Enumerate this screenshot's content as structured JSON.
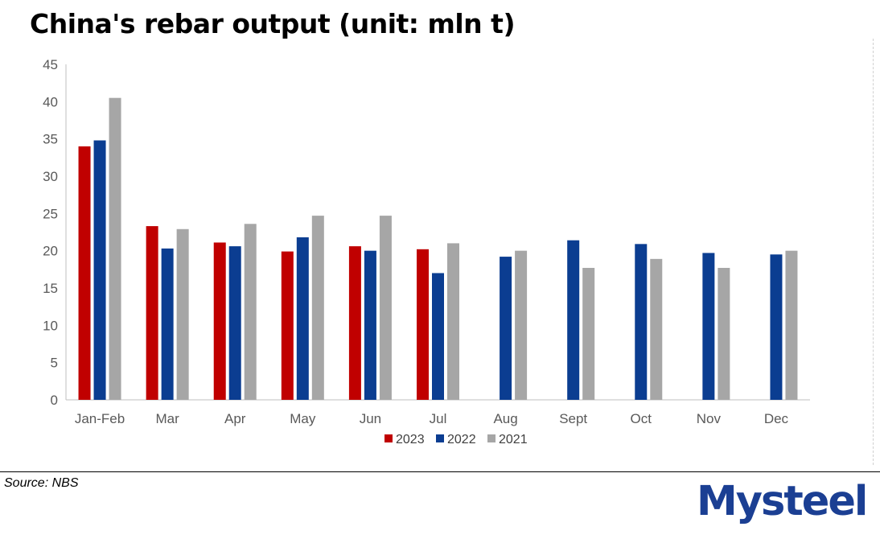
{
  "chart_data": {
    "type": "bar",
    "title": "China's rebar output (unit: mln t)",
    "categories": [
      "Jan-Feb",
      "Mar",
      "Apr",
      "May",
      "Jun",
      "Jul",
      "Aug",
      "Sept",
      "Oct",
      "Nov",
      "Dec"
    ],
    "series": [
      {
        "name": "2023",
        "color": "#c00000",
        "values": [
          34.0,
          23.3,
          21.1,
          19.9,
          20.6,
          20.2,
          null,
          null,
          null,
          null,
          null
        ]
      },
      {
        "name": "2022",
        "color": "#0b3d91",
        "values": [
          34.8,
          20.3,
          20.6,
          21.8,
          20.0,
          17.0,
          19.2,
          21.4,
          20.9,
          19.7,
          19.5
        ]
      },
      {
        "name": "2021",
        "color": "#a6a6a6",
        "values": [
          40.5,
          22.9,
          23.6,
          24.7,
          24.7,
          21.0,
          20.0,
          17.7,
          18.9,
          17.7,
          20.0
        ]
      }
    ],
    "ylim": [
      0,
      45
    ],
    "yticks": [
      0,
      5,
      10,
      15,
      20,
      25,
      30,
      35,
      40,
      45
    ],
    "xlabel": "",
    "ylabel": "",
    "grid": false,
    "legend_position": "bottom"
  },
  "footer": {
    "source": "Source: NBS",
    "logo_text": "Mysteel"
  }
}
